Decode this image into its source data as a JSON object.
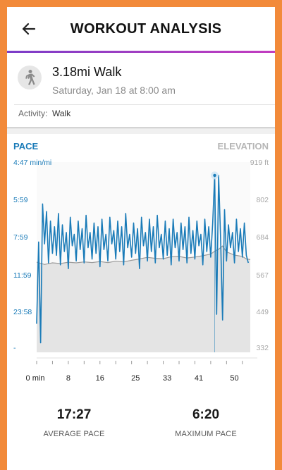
{
  "header": {
    "title": "WORKOUT ANALYSIS",
    "back_icon": "arrow-left-icon"
  },
  "workout": {
    "name": "3.18mi Walk",
    "date": "Saturday, Jan 18 at 8:00 am",
    "activity_label": "Activity:",
    "activity_value": "Walk",
    "icon": "walking-person-icon"
  },
  "chart": {
    "left_title": "PACE",
    "right_title": "ELEVATION"
  },
  "stats": {
    "average": {
      "value": "17:27",
      "label": "AVERAGE PACE"
    },
    "maximum": {
      "value": "6:20",
      "label": "MAXIMUM PACE"
    }
  },
  "colors": {
    "pace": "#1a7bb8",
    "elevation": "#9a9a9a",
    "accent": "#a13ec2",
    "frame": "#f28a3a"
  },
  "chart_data": {
    "type": "line",
    "xlabel": "",
    "x_ticks": [
      "0 min",
      "8",
      "16",
      "25",
      "33",
      "41",
      "50"
    ],
    "x_tick_values": [
      0,
      8,
      16,
      25,
      33,
      41,
      50
    ],
    "xlim": [
      0,
      54
    ],
    "pace_ticks": [
      "4:47 min/mi",
      "5:59",
      "7:59",
      "11:59",
      "23:58",
      "-"
    ],
    "elevation_ticks": [
      "919 ft",
      "802",
      "684",
      "567",
      "449",
      "332"
    ],
    "elevation_ylim": [
      332,
      919
    ],
    "series": [
      {
        "name": "PACE",
        "axis": "left",
        "x": [
          0,
          0.5,
          1,
          1.5,
          2,
          2.5,
          3,
          3.5,
          4,
          4.5,
          5,
          5.5,
          6,
          6.5,
          7,
          7.5,
          8,
          8.5,
          9,
          9.5,
          10,
          10.5,
          11,
          11.5,
          12,
          12.5,
          13,
          13.5,
          14,
          14.5,
          15,
          15.5,
          16,
          16.5,
          17,
          17.5,
          18,
          18.5,
          19,
          19.5,
          20,
          20.5,
          21,
          21.5,
          22,
          22.5,
          23,
          23.5,
          24,
          24.5,
          25,
          25.5,
          26,
          26.5,
          27,
          27.5,
          28,
          28.5,
          29,
          29.5,
          30,
          30.5,
          31,
          31.5,
          32,
          32.5,
          33,
          33.5,
          34,
          34.5,
          35,
          35.5,
          36,
          36.5,
          37,
          37.5,
          38,
          38.5,
          39,
          39.5,
          40,
          40.5,
          41,
          41.5,
          42,
          42.5,
          43,
          43.5,
          44,
          44.5,
          45,
          45.5,
          46,
          46.5,
          47,
          47.5,
          48,
          48.5,
          49,
          49.5,
          50,
          50.5,
          51,
          51.5,
          52,
          52.5,
          53,
          53.5
        ],
        "level": [
          0.15,
          0.58,
          0.05,
          0.78,
          0.57,
          0.74,
          0.47,
          0.69,
          0.52,
          0.66,
          0.51,
          0.73,
          0.46,
          0.67,
          0.53,
          0.63,
          0.44,
          0.71,
          0.56,
          0.62,
          0.48,
          0.69,
          0.54,
          0.65,
          0.47,
          0.72,
          0.55,
          0.63,
          0.49,
          0.68,
          0.52,
          0.66,
          0.45,
          0.7,
          0.54,
          0.62,
          0.48,
          0.71,
          0.57,
          0.64,
          0.49,
          0.69,
          0.53,
          0.66,
          0.46,
          0.73,
          0.55,
          0.62,
          0.5,
          0.68,
          0.52,
          0.65,
          0.44,
          0.71,
          0.56,
          0.63,
          0.48,
          0.7,
          0.53,
          0.66,
          0.47,
          0.72,
          0.55,
          0.62,
          0.49,
          0.69,
          0.51,
          0.65,
          0.46,
          0.7,
          0.55,
          0.63,
          0.48,
          0.68,
          0.54,
          0.66,
          0.47,
          0.71,
          0.52,
          0.64,
          0.49,
          0.69,
          0.56,
          0.62,
          0.46,
          0.7,
          0.53,
          0.66,
          0.5,
          0.68,
          0.93,
          0.2,
          0.93,
          0.6,
          0.17,
          0.75,
          0.48,
          0.67,
          0.55,
          0.63,
          0.47,
          0.7,
          0.53,
          0.65,
          0.5,
          0.68,
          0.51,
          0.47
        ]
      },
      {
        "name": "ELEVATION",
        "axis": "right",
        "x": [
          0,
          2,
          4,
          6,
          8,
          10,
          12,
          14,
          16,
          18,
          20,
          22,
          24,
          26,
          28,
          30,
          32,
          34,
          36,
          38,
          40,
          42,
          44,
          45,
          46,
          47,
          48,
          50,
          52,
          53,
          54
        ],
        "values": [
          610,
          603,
          608,
          606,
          610,
          608,
          611,
          609,
          612,
          609,
          613,
          611,
          616,
          620,
          625,
          622,
          621,
          627,
          628,
          623,
          626,
          630,
          635,
          644,
          650,
          660,
          642,
          632,
          628,
          620,
          618
        ]
      }
    ],
    "marker": {
      "x": 45,
      "series": "PACE"
    }
  }
}
